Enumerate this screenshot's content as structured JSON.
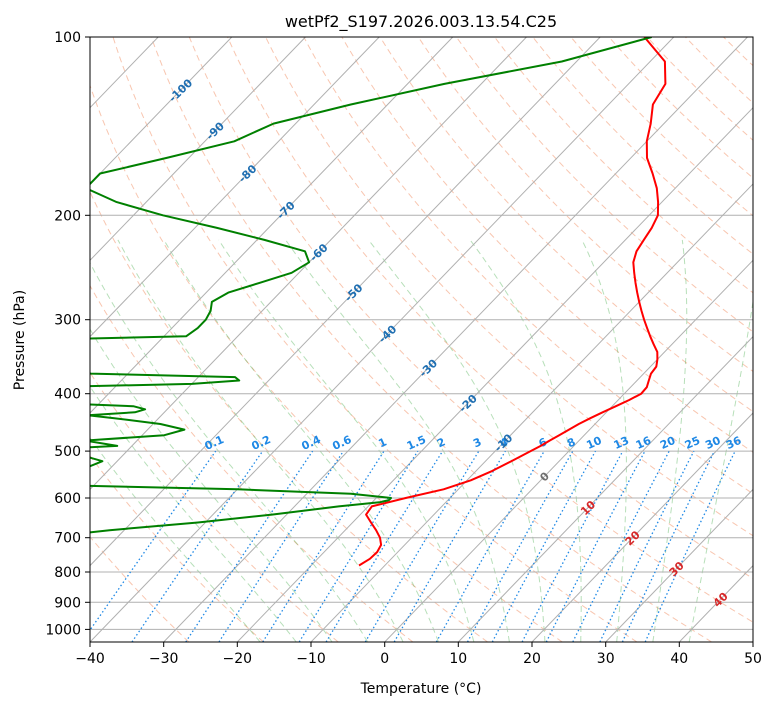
{
  "chart_data": {
    "type": "line",
    "title": "wetPf2_S197.2026.003.13.54.C25",
    "xlabel": "Temperature (°C)",
    "ylabel": "Pressure (hPa)",
    "xlim": [
      -40,
      50
    ],
    "ylim": [
      1050,
      100
    ],
    "yscale": "log",
    "skew": "skew-T log-p",
    "grid": true,
    "x_ticks": [
      "−40",
      "−30",
      "−20",
      "−10",
      "0",
      "10",
      "20",
      "30",
      "40",
      "50"
    ],
    "x_tick_values": [
      -40,
      -30,
      -20,
      -10,
      0,
      10,
      20,
      30,
      40,
      50
    ],
    "y_ticks": [
      "100",
      "200",
      "300",
      "400",
      "500",
      "600",
      "700",
      "800",
      "900",
      "1000"
    ],
    "y_tick_values": [
      100,
      200,
      300,
      400,
      500,
      600,
      700,
      800,
      900,
      1000
    ],
    "isotherm_labels": [
      {
        "text": "-100",
        "t": -100,
        "p": 123
      },
      {
        "text": "-90",
        "t": -90,
        "p": 144
      },
      {
        "text": "-80",
        "t": -80,
        "p": 170
      },
      {
        "text": "-70",
        "t": -70,
        "p": 196
      },
      {
        "text": "-60",
        "t": -60,
        "p": 231
      },
      {
        "text": "-50",
        "t": -50,
        "p": 270
      },
      {
        "text": "-40",
        "t": -40,
        "p": 317
      },
      {
        "text": "-30",
        "t": -30,
        "p": 362
      },
      {
        "text": "-20",
        "t": -20,
        "p": 415
      },
      {
        "text": "-10",
        "t": -10,
        "p": 484
      },
      {
        "text": "0",
        "t": 0,
        "p": 552
      },
      {
        "text": "10",
        "t": 10,
        "p": 623
      },
      {
        "text": "20",
        "t": 20,
        "p": 701
      },
      {
        "text": "30",
        "t": 30,
        "p": 790
      },
      {
        "text": "40",
        "t": 40,
        "p": 890
      }
    ],
    "mixing_ratio_labels": [
      "0.1",
      "0.2",
      "0.4",
      "0.6",
      "1",
      "1.5",
      "2",
      "3",
      "4",
      "6",
      "8",
      "10",
      "13",
      "16",
      "20",
      "25",
      "30",
      "36"
    ],
    "mixing_ratio_values": [
      0.1,
      0.2,
      0.4,
      0.6,
      1,
      1.5,
      2,
      3,
      4,
      6,
      8,
      10,
      13,
      16,
      20,
      25,
      30,
      36
    ],
    "series": [
      {
        "color": "#ff0000",
        "p": [
          100,
          110,
          120,
          130,
          140,
          150,
          160,
          170,
          180,
          190,
          200,
          210,
          220,
          230,
          240,
          250,
          260,
          270,
          280,
          290,
          300,
          310,
          320,
          330,
          340,
          350,
          360,
          370,
          380,
          390,
          400,
          410,
          420,
          430,
          440,
          450,
          460,
          470,
          480,
          490,
          500,
          520,
          540,
          560,
          580,
          600,
          620,
          640,
          660,
          680,
          700,
          720,
          740,
          760,
          780
        ],
        "t": [
          -44,
          -38,
          -35,
          -34,
          -31.8,
          -30,
          -27.8,
          -25,
          -22.5,
          -20.5,
          -18.8,
          -18,
          -17.5,
          -17,
          -16,
          -14.5,
          -13,
          -11.5,
          -10,
          -8.5,
          -7,
          -5.5,
          -4,
          -2.5,
          -1,
          0,
          0.8,
          1,
          1.6,
          2.2,
          2.3,
          1.5,
          0.5,
          -0.5,
          -1.4,
          -2.2,
          -2.8,
          -3.4,
          -4,
          -4.5,
          -5.2,
          -6.5,
          -7.8,
          -9.5,
          -12,
          -16,
          -19.5,
          -19.2,
          -17.5,
          -15.8,
          -14.3,
          -13.2,
          -12.8,
          -12.9,
          -13.5
        ]
      },
      {
        "color": "#008000",
        "p": [
          100,
          110,
          120,
          130,
          140,
          150,
          160,
          170,
          180,
          190,
          200,
          210,
          220,
          230,
          240,
          250,
          260,
          270,
          280,
          290,
          300,
          310,
          320,
          325,
          330,
          340,
          350,
          360,
          370,
          375,
          380,
          385,
          390,
          395,
          400,
          410,
          420,
          425,
          430,
          435,
          440,
          450,
          460,
          470,
          480,
          490,
          500,
          510,
          520,
          530,
          540,
          550,
          560,
          570,
          580,
          590,
          600,
          605,
          610,
          620,
          640,
          660,
          680,
          700,
          710,
          720,
          730,
          740,
          760,
          780
        ],
        "t": [
          -43,
          -52,
          -65,
          -75,
          -83,
          -86,
          -93,
          -100,
          -100,
          -94,
          -86,
          -77,
          -69,
          -62,
          -60,
          -61,
          -64,
          -67,
          -68,
          -67,
          -66.5,
          -66.5,
          -67,
          -90,
          -92,
          -93.5,
          -94,
          -94.5,
          -75,
          -55,
          -54,
          -60,
          -80,
          -89,
          -89.5,
          -88,
          -65,
          -63,
          -64,
          -70,
          -66,
          -59,
          -55,
          -57,
          -67,
          -62,
          -75,
          -65,
          -62,
          -63,
          -64,
          -76,
          -77,
          -67,
          -40,
          -24,
          -18,
          -18,
          -19,
          -24,
          -32,
          -41,
          -52,
          -60,
          -66,
          -73,
          -77,
          -73,
          -63,
          -56
        ]
      }
    ]
  }
}
